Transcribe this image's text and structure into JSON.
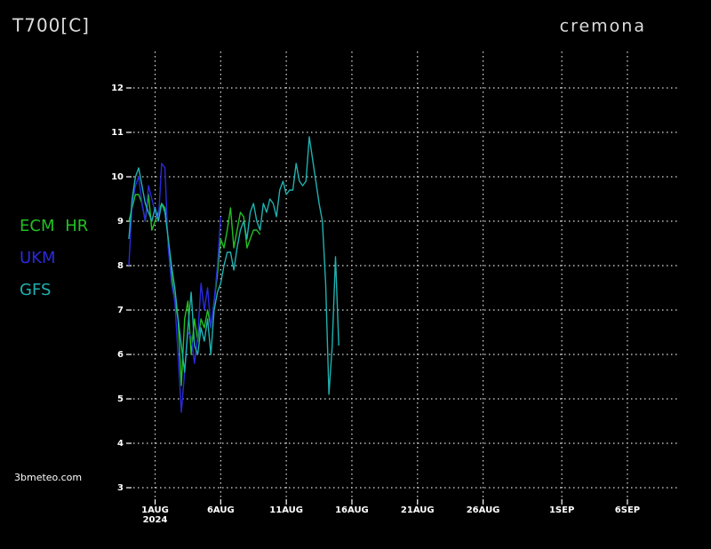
{
  "chart_data": {
    "type": "line",
    "title": "T700[C]",
    "subtitle": "cremona",
    "source": "3bmeteo.com",
    "x_sublabel": "2024",
    "x": [
      "2024-07-30T00:00",
      "2024-07-30T06:00",
      "2024-07-30T12:00",
      "2024-07-30T18:00",
      "2024-07-31T00:00",
      "2024-07-31T06:00",
      "2024-07-31T12:00",
      "2024-07-31T18:00",
      "2024-08-01T00:00",
      "2024-08-01T06:00",
      "2024-08-01T12:00",
      "2024-08-01T18:00",
      "2024-08-02T00:00",
      "2024-08-02T06:00",
      "2024-08-02T12:00",
      "2024-08-02T18:00",
      "2024-08-03T00:00",
      "2024-08-03T06:00",
      "2024-08-03T12:00",
      "2024-08-03T18:00",
      "2024-08-04T00:00",
      "2024-08-04T06:00",
      "2024-08-04T12:00",
      "2024-08-04T18:00",
      "2024-08-05T00:00",
      "2024-08-05T06:00",
      "2024-08-05T12:00",
      "2024-08-05T18:00",
      "2024-08-06T00:00",
      "2024-08-06T06:00",
      "2024-08-06T12:00",
      "2024-08-06T18:00",
      "2024-08-07T00:00",
      "2024-08-07T06:00",
      "2024-08-07T12:00",
      "2024-08-07T18:00",
      "2024-08-08T00:00",
      "2024-08-08T06:00",
      "2024-08-08T12:00",
      "2024-08-08T18:00",
      "2024-08-09T00:00",
      "2024-08-09T06:00",
      "2024-08-09T12:00",
      "2024-08-09T18:00",
      "2024-08-10T00:00",
      "2024-08-10T06:00",
      "2024-08-10T12:00",
      "2024-08-10T18:00",
      "2024-08-11T00:00",
      "2024-08-11T06:00",
      "2024-08-11T12:00",
      "2024-08-11T18:00",
      "2024-08-12T00:00",
      "2024-08-12T06:00",
      "2024-08-12T12:00",
      "2024-08-12T18:00",
      "2024-08-13T00:00",
      "2024-08-13T06:00",
      "2024-08-13T12:00",
      "2024-08-13T18:00",
      "2024-08-14T00:00",
      "2024-08-14T06:00",
      "2024-08-14T12:00",
      "2024-08-14T18:00",
      "2024-08-15T00:00"
    ],
    "series": [
      {
        "name": "ECM HR",
        "color": "#22c022",
        "values": [
          9.0,
          9.3,
          9.6,
          9.6,
          9.4,
          9.0,
          9.6,
          8.8,
          9.0,
          9.2,
          9.4,
          9.3,
          8.6,
          7.8,
          7.2,
          6.8,
          5.3,
          6.8,
          7.2,
          6.0,
          6.8,
          6.3,
          6.8,
          6.6,
          7.0,
          6.6,
          7.2,
          7.8,
          8.6,
          8.4,
          8.8,
          9.3,
          8.4,
          8.8,
          9.2,
          9.1,
          8.4,
          8.6,
          8.8,
          8.8,
          8.7,
          null,
          null,
          null,
          null,
          null,
          null,
          null,
          null,
          null,
          null,
          null,
          null,
          null,
          null,
          null,
          null,
          null,
          null,
          null,
          null,
          null,
          null,
          null,
          null
        ]
      },
      {
        "name": "UKM",
        "color": "#2a2adc",
        "values": [
          8.0,
          9.4,
          9.8,
          10.0,
          9.4,
          9.0,
          9.8,
          9.5,
          9.2,
          9.0,
          10.3,
          10.2,
          8.4,
          7.6,
          7.2,
          6.0,
          4.7,
          5.6,
          6.5,
          6.4,
          5.8,
          6.4,
          7.6,
          7.0,
          7.5,
          6.6,
          7.2,
          8.0,
          9.1,
          null,
          null,
          null,
          null,
          null,
          null,
          null,
          null,
          null,
          null,
          null,
          null,
          null,
          null,
          null,
          null,
          null,
          null,
          null,
          null,
          null,
          null,
          null,
          null,
          null,
          null,
          null,
          null,
          null,
          null,
          null,
          null,
          null,
          null,
          null,
          null
        ]
      },
      {
        "name": "GFS",
        "color": "#20b0b0",
        "values": [
          8.6,
          9.5,
          10.0,
          10.2,
          9.8,
          9.4,
          9.2,
          9.0,
          9.3,
          9.0,
          9.4,
          9.2,
          8.6,
          8.0,
          7.5,
          6.8,
          6.2,
          5.6,
          6.6,
          7.4,
          6.2,
          6.0,
          6.6,
          6.3,
          6.8,
          6.0,
          7.0,
          7.4,
          7.6,
          8.0,
          8.3,
          8.3,
          7.9,
          8.4,
          8.8,
          9.0,
          8.6,
          9.2,
          9.4,
          9.0,
          8.8,
          9.4,
          9.2,
          9.5,
          9.4,
          9.1,
          9.7,
          9.9,
          9.6,
          9.7,
          9.7,
          10.3,
          9.9,
          9.8,
          9.9,
          10.9,
          10.4,
          9.9,
          9.4,
          9.0,
          7.6,
          5.1,
          6.2,
          8.2,
          6.2
        ]
      }
    ],
    "xlim": [
      "2024-07-30T00:00",
      "2024-09-10T00:00"
    ],
    "xticks": [
      {
        "value": "2024-08-01T00:00",
        "label": "1AUG"
      },
      {
        "value": "2024-08-06T00:00",
        "label": "6AUG"
      },
      {
        "value": "2024-08-11T00:00",
        "label": "11AUG"
      },
      {
        "value": "2024-08-16T00:00",
        "label": "16AUG"
      },
      {
        "value": "2024-08-21T00:00",
        "label": "21AUG"
      },
      {
        "value": "2024-08-26T00:00",
        "label": "26AUG"
      },
      {
        "value": "2024-09-01T00:00",
        "label": "1SEP"
      },
      {
        "value": "2024-09-06T00:00",
        "label": "6SEP"
      }
    ],
    "ylim": [
      2.78,
      12.82
    ],
    "yticks": [
      3,
      4,
      5,
      6,
      7,
      8,
      9,
      10,
      11,
      12
    ],
    "grid": true
  }
}
